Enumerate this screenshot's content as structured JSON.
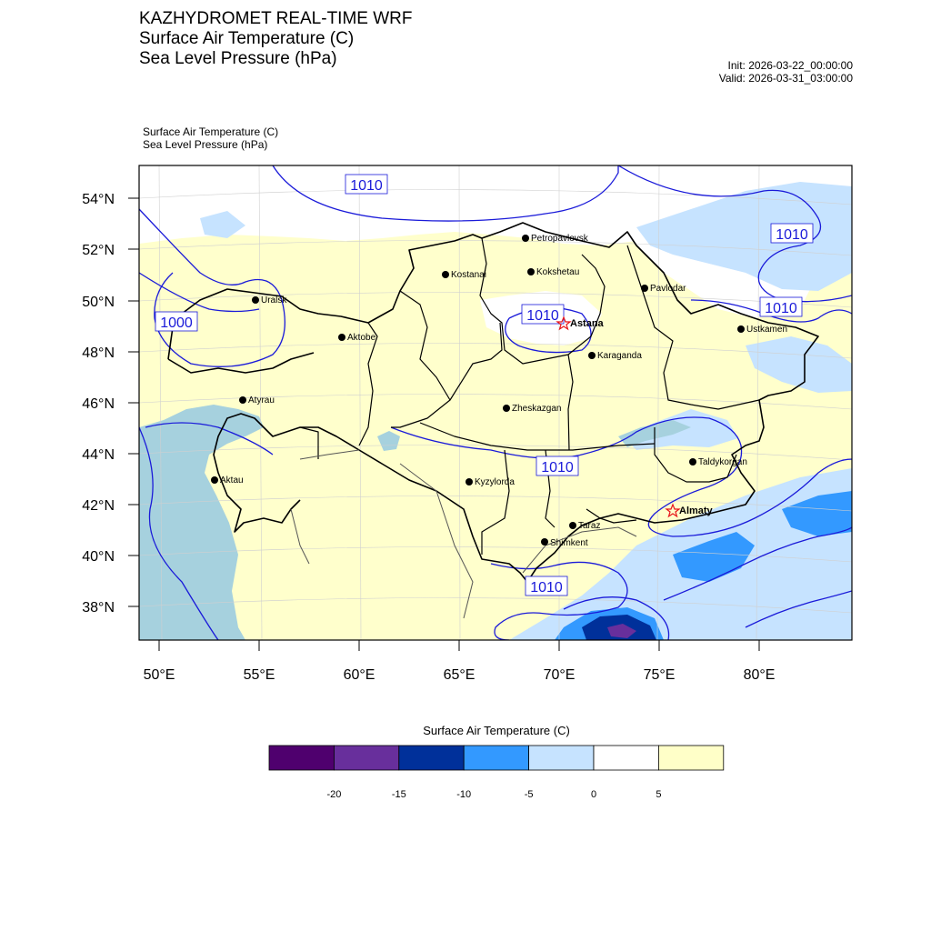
{
  "header": {
    "title_lines": [
      "KAZHYDROMET REAL-TIME WRF",
      "Surface Air Temperature  (C)",
      "Sea Level Pressure  (hPa)"
    ],
    "init": "Init: 2026-03-22_00:00:00",
    "valid": "Valid: 2026-03-31_03:00:00"
  },
  "map": {
    "subtitle_lines": [
      "Surface Air Temperature   (C)",
      "Sea Level Pressure   (hPa)"
    ],
    "lat_labels": [
      "54°N",
      "52°N",
      "50°N",
      "48°N",
      "46°N",
      "44°N",
      "42°N",
      "40°N",
      "38°N"
    ],
    "lon_labels": [
      "50°E",
      "55°E",
      "60°E",
      "65°E",
      "70°E",
      "75°E",
      "80°E"
    ],
    "isobar_labels": [
      "1010",
      "1010",
      "1010",
      "1010",
      "1000",
      "1010",
      "1010"
    ],
    "cities": [
      {
        "name": "Petropavlovsk",
        "marker": "dot"
      },
      {
        "name": "Kostanai",
        "marker": "dot"
      },
      {
        "name": "Kokshetau",
        "marker": "dot"
      },
      {
        "name": "Pavlodar",
        "marker": "dot"
      },
      {
        "name": "Uralsk",
        "marker": "dot"
      },
      {
        "name": "Astana",
        "marker": "star"
      },
      {
        "name": "Aktobe",
        "marker": "dot"
      },
      {
        "name": "Ustkamen",
        "marker": "dot"
      },
      {
        "name": "Karaganda",
        "marker": "dot"
      },
      {
        "name": "Atyrau",
        "marker": "dot"
      },
      {
        "name": "Zheskazgan",
        "marker": "dot"
      },
      {
        "name": "Aktau",
        "marker": "dot"
      },
      {
        "name": "Kyzylorda",
        "marker": "dot"
      },
      {
        "name": "Taldykorgan",
        "marker": "dot"
      },
      {
        "name": "Almaty",
        "marker": "star"
      },
      {
        "name": "Taraz",
        "marker": "dot"
      },
      {
        "name": "Shimkent",
        "marker": "dot"
      }
    ],
    "colors": {
      "warm_fill": "#ffffcc",
      "white_fill": "#ffffff",
      "sea_fill": "#a6d1de",
      "isobar": "#1a1ad9",
      "border": "#000000",
      "city_star": "#e8151b"
    }
  },
  "colorbar": {
    "title": "Surface Air Temperature (C)",
    "colors": [
      "#4f006e",
      "#682f9c",
      "#00309a",
      "#3399ff",
      "#c6e3ff",
      "#ffffff",
      "#ffffc8"
    ],
    "tick_labels": [
      "-20",
      "-15",
      "-10",
      "-5",
      "0",
      "5"
    ]
  }
}
